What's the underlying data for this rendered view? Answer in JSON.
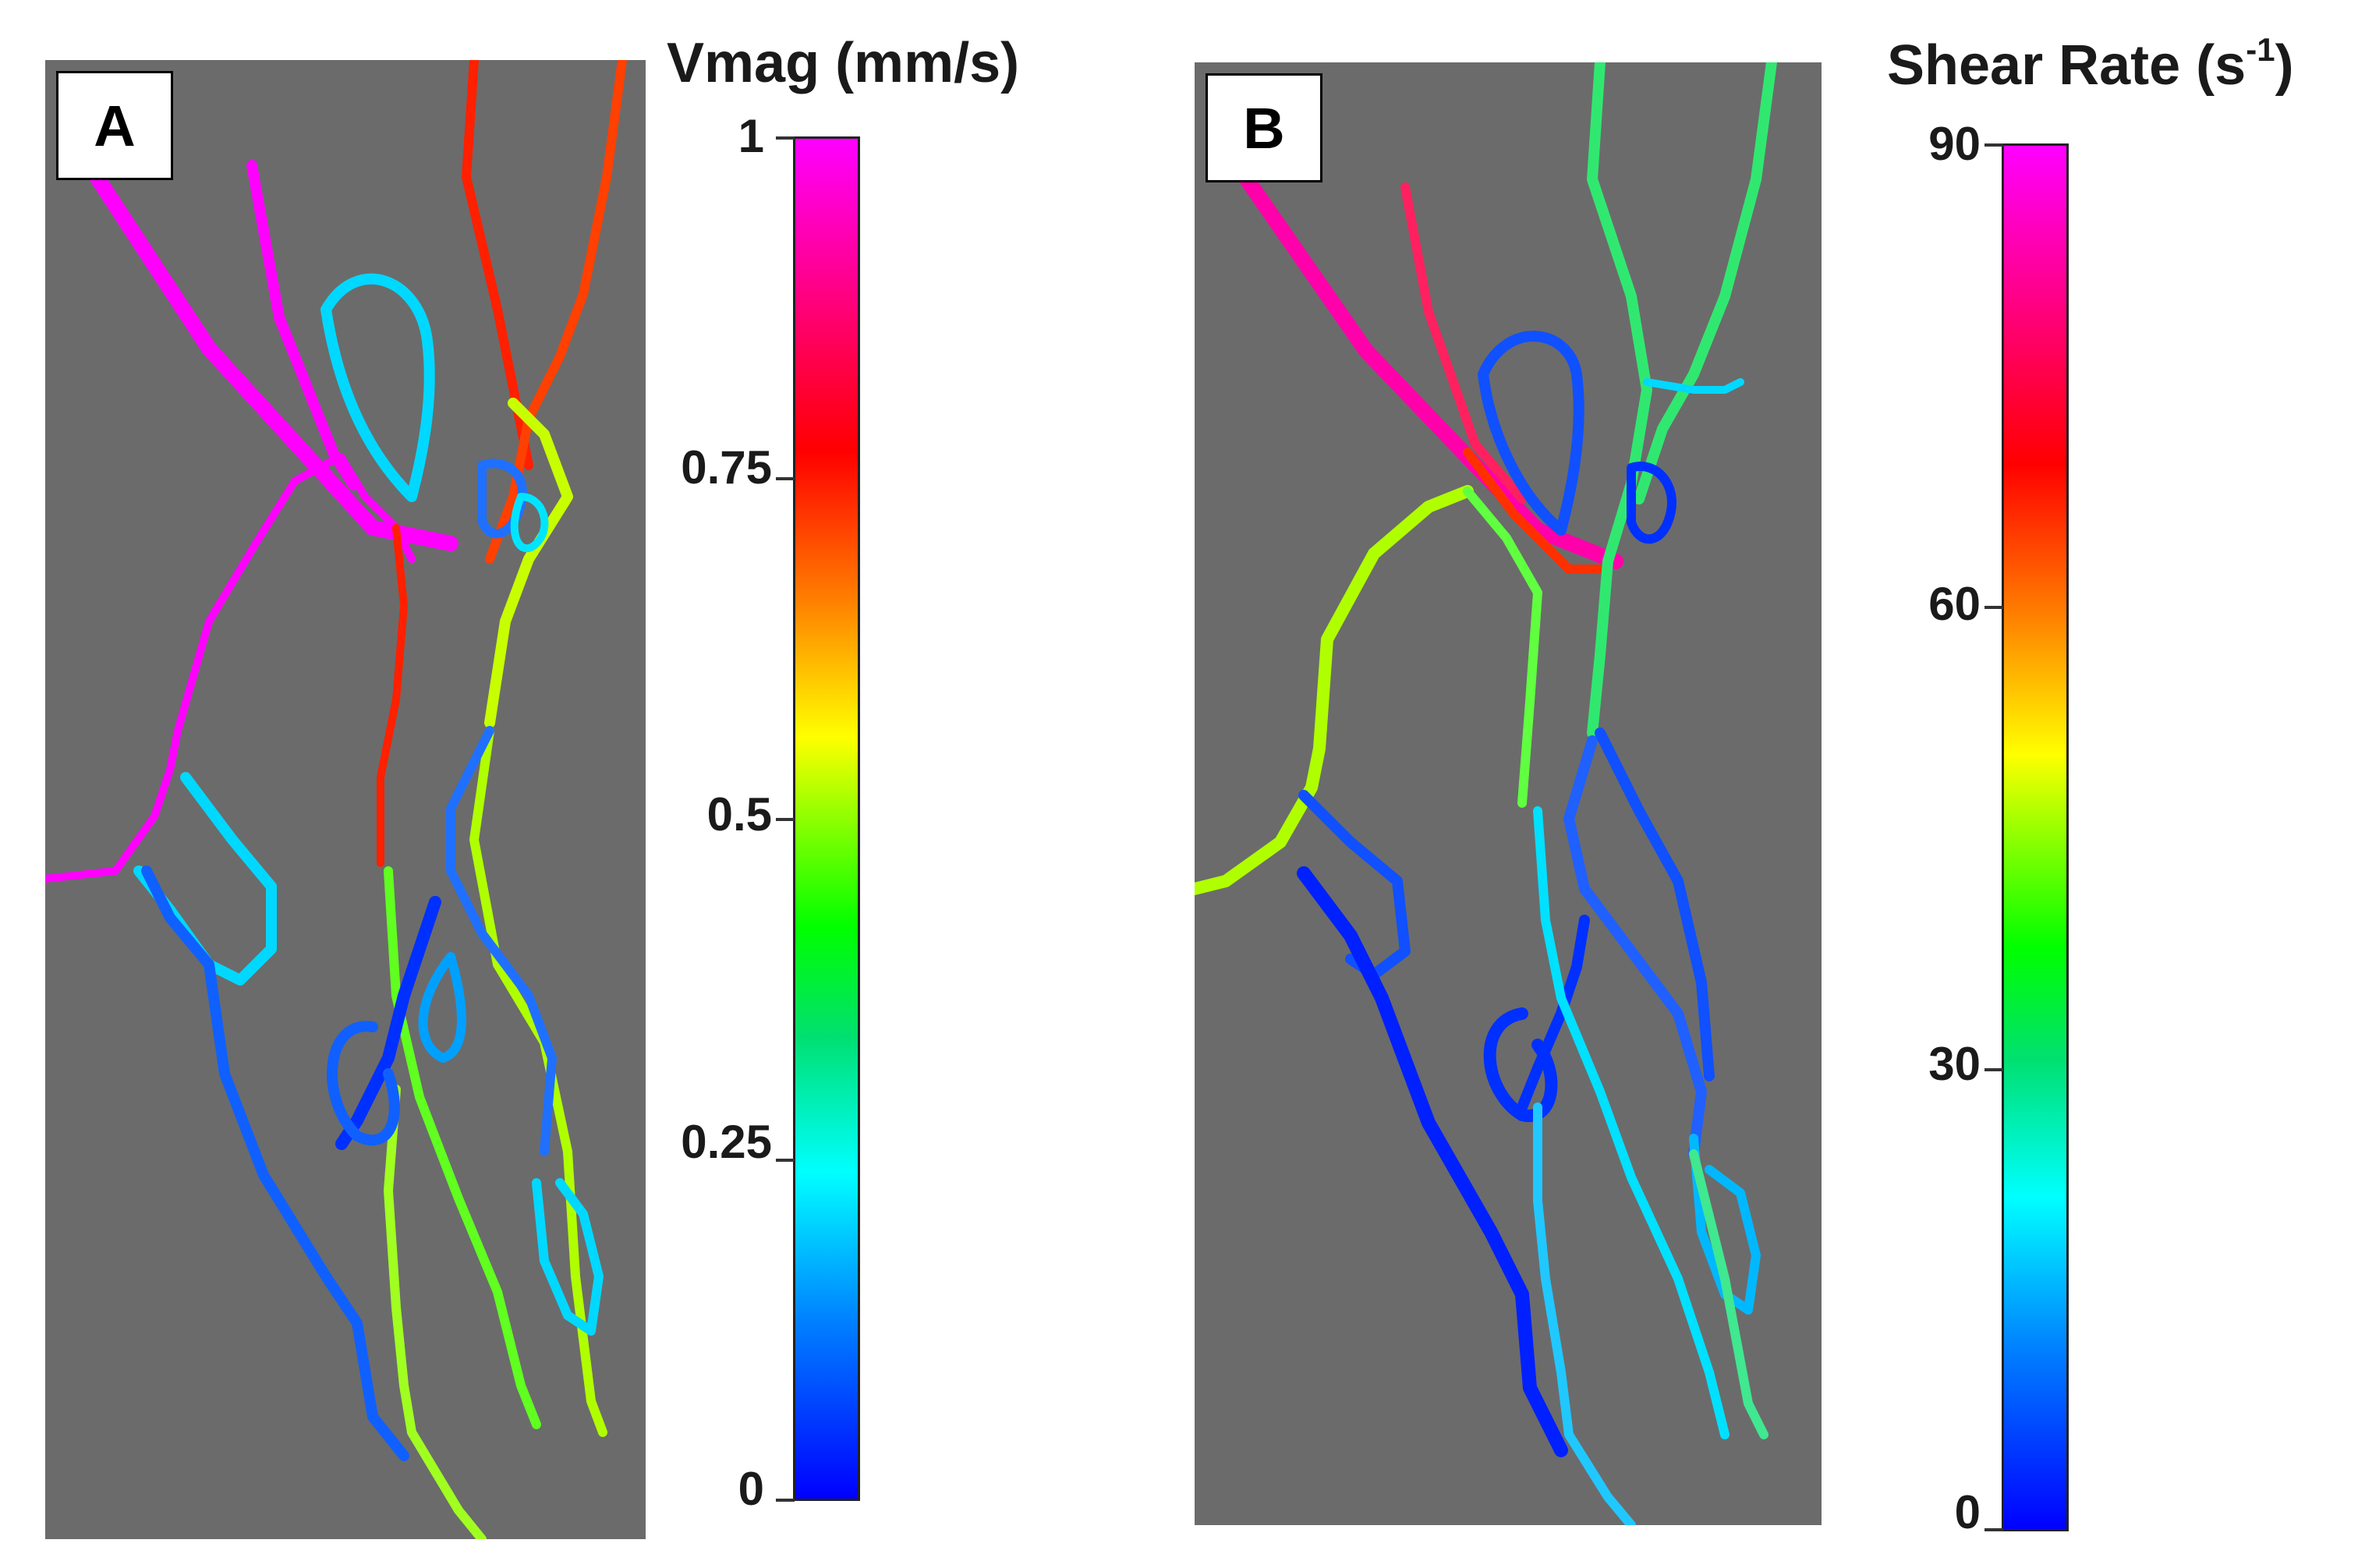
{
  "panels": [
    {
      "label": "A",
      "colorbar": {
        "title": "Vmag (mm/s)",
        "ticks": [
          "1",
          "0.75",
          "0.5",
          "0.25",
          "0"
        ]
      }
    },
    {
      "label": "B",
      "colorbar": {
        "title": "Shear Rate (s",
        "title_sup": "-1",
        "title_suffix": ")",
        "ticks": [
          "90",
          "60",
          "30",
          "0"
        ]
      }
    }
  ],
  "colors": {
    "background": "#6b6b6b",
    "magenta": "#ff00ff",
    "red": "#ff0000",
    "yellow_green": "#c8ff00",
    "green": "#00e060",
    "cyan": "#00e5ff",
    "light_blue": "#0080ff",
    "blue": "#0030ff"
  }
}
